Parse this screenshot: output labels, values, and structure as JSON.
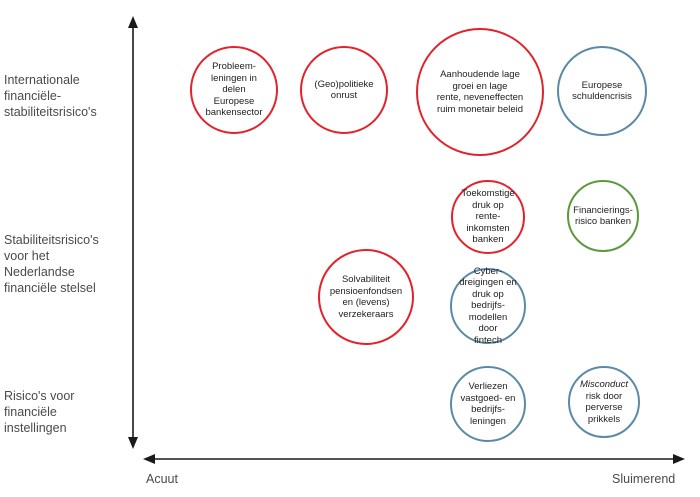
{
  "rows": [
    {
      "id": "international",
      "label": "Internationale\nfinanciële-\nstabiliteitsrisico's"
    },
    {
      "id": "nederland",
      "label": "Stabiliteitsrisico's\nvoor het\nNederlandse\nfinanciële stelsel"
    },
    {
      "id": "instellingen",
      "label": "Risico's voor\nfinanciële\ninstellingen"
    }
  ],
  "axis": {
    "left_label": "Acuut",
    "right_label": "Sluimerend"
  },
  "colors": {
    "red": "#e3222b",
    "blue": "#5b8aa6",
    "green": "#5a9a3c",
    "axis": "#1a1a1a"
  },
  "bubbles": [
    {
      "id": "probleemleningen",
      "text": "Probleem-\nleningen in\ndelen\nEuropese\nbankensector",
      "color": "red"
    },
    {
      "id": "geopolitieke-onrust",
      "text": "(Geo)politieke\nonrust",
      "color": "red"
    },
    {
      "id": "lage-groei",
      "text": "Aanhoudende lage\ngroei en lage\nrente, neveneffecten\nruim monetair beleid",
      "color": "red"
    },
    {
      "id": "schuldencrisis",
      "text": "Europese\nschuldencrisis",
      "color": "blue"
    },
    {
      "id": "toekomstige-druk",
      "text": "Toekomstige\ndruk op\nrente-inkomsten\nbanken",
      "color": "red"
    },
    {
      "id": "financieringsrisico",
      "text": "Financierings-\nrisico banken",
      "color": "green"
    },
    {
      "id": "solvabiliteit",
      "text": "Solvabiliteit\npensioenfondsen\nen (levens)\nverzekeraars",
      "color": "red"
    },
    {
      "id": "cyberdreigingen",
      "text": "Cyber-\ndreigingen en\ndruk op bedrijfs-\nmodellen door\nfintech",
      "color": "blue"
    },
    {
      "id": "verliezen",
      "text": "Verliezen\nvastgoed- en\nbedrijfs-\nleningen",
      "color": "blue"
    },
    {
      "id": "misconduct",
      "text_italic": "Misconduct",
      "text": "risk door\nperverse\nprikkels",
      "color": "blue"
    }
  ]
}
